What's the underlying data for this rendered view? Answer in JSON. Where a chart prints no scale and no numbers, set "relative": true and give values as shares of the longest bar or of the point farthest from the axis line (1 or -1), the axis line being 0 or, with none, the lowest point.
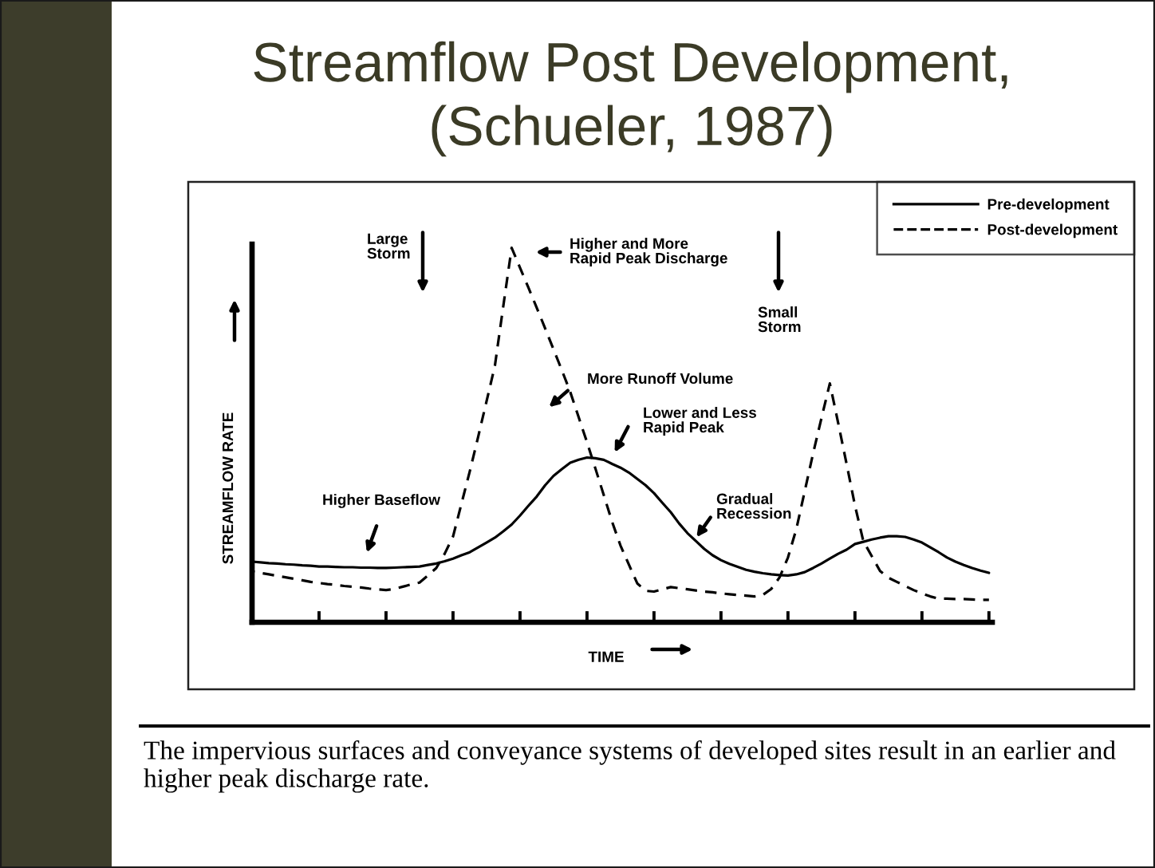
{
  "chart_data": {
    "type": "line",
    "title": "Streamflow Post Development,\n(Schueler, 1987)",
    "xlabel": "TIME",
    "ylabel": "STREAMFLOW RATE",
    "relative": true,
    "legend": "top right",
    "categories": [
      null,
      null,
      null,
      null,
      null,
      null,
      null,
      null,
      null,
      null,
      null,
      null,
      null,
      null,
      null,
      null,
      null,
      null,
      null,
      null,
      null,
      null,
      null,
      null,
      null,
      null,
      null,
      null,
      null,
      null,
      null,
      null,
      null,
      null,
      null,
      null,
      null,
      null,
      null,
      null,
      null,
      null,
      null,
      null,
      null,
      null,
      null,
      null,
      null,
      null,
      null,
      null,
      null,
      null,
      null,
      null,
      null,
      null,
      null,
      null,
      null,
      null,
      null,
      null,
      null,
      null,
      null,
      null,
      null,
      null,
      null,
      null,
      null,
      null,
      null,
      null,
      null,
      null,
      null,
      null,
      null,
      null,
      null,
      null,
      null,
      null,
      null,
      null,
      null
    ],
    "series": [
      {
        "name": "Pre-development",
        "color": "#000000",
        "line_style": "solid",
        "values": [
          0.162,
          0.16,
          0.158,
          0.157,
          0.155,
          0.154,
          0.152,
          0.151,
          0.149,
          0.149,
          0.148,
          0.147,
          0.147,
          0.146,
          0.146,
          0.145,
          0.145,
          0.146,
          0.147,
          0.148,
          0.149,
          0.153,
          0.157,
          0.163,
          0.17,
          0.179,
          0.187,
          0.2,
          0.213,
          0.226,
          0.243,
          0.261,
          0.285,
          0.311,
          0.336,
          0.366,
          0.391,
          0.409,
          0.426,
          0.434,
          0.44,
          0.438,
          0.434,
          0.423,
          0.413,
          0.4,
          0.383,
          0.366,
          0.345,
          0.319,
          0.294,
          0.264,
          0.238,
          0.217,
          0.196,
          0.179,
          0.166,
          0.156,
          0.148,
          0.14,
          0.135,
          0.131,
          0.128,
          0.126,
          0.125,
          0.128,
          0.134,
          0.145,
          0.157,
          0.17,
          0.183,
          0.194,
          0.209,
          0.215,
          0.221,
          0.226,
          0.23,
          0.23,
          0.228,
          0.221,
          0.213,
          0.2,
          0.187,
          0.173,
          0.162,
          0.153,
          0.145,
          0.138,
          0.132
        ]
      },
      {
        "name": "Post-development",
        "color": "#000000",
        "line_style": "dashed",
        "values": [
          0.136,
          0.132,
          0.128,
          0.124,
          0.12,
          0.116,
          0.112,
          0.108,
          0.105,
          0.102,
          0.1,
          0.097,
          0.095,
          0.093,
          0.09,
          0.088,
          0.086,
          0.089,
          0.095,
          0.101,
          0.106,
          0.125,
          0.145,
          0.183,
          0.229,
          0.316,
          0.403,
          0.495,
          0.59,
          0.685,
          0.844,
          1.0,
          0.947,
          0.894,
          0.84,
          0.785,
          0.729,
          0.673,
          0.615,
          0.548,
          0.481,
          0.411,
          0.34,
          0.268,
          0.205,
          0.154,
          0.104,
          0.084,
          0.082,
          0.088,
          0.094,
          0.091,
          0.088,
          0.085,
          0.082,
          0.08,
          0.077,
          0.075,
          0.073,
          0.071,
          0.069,
          0.073,
          0.089,
          0.12,
          0.173,
          0.249,
          0.35,
          0.451,
          0.545,
          0.638,
          0.532,
          0.423,
          0.312,
          0.217,
          0.177,
          0.137,
          0.119,
          0.108,
          0.097,
          0.086,
          0.077,
          0.069,
          0.063,
          0.063,
          0.062,
          0.062,
          0.061,
          0.06,
          0.06
        ]
      }
    ],
    "annotations": [
      "Large\nStorm",
      "Higher and More\nRapid Peak Discharge",
      "Small\nStorm",
      "More Runoff Volume",
      "Lower and Less\nRapid Peak",
      "Higher Baseflow",
      "Gradual\nRecession",
      "The impervious surfaces and conveyance systems of developed sites result in an earlier and higher peak discharge rate."
    ]
  }
}
